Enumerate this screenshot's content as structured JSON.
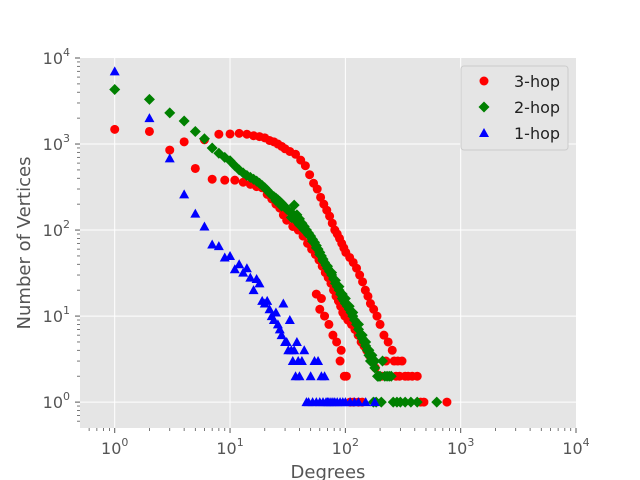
{
  "chart_data": {
    "type": "scatter",
    "title": "",
    "xlabel": "Degrees",
    "ylabel": "Number of Vertices",
    "xscale": "log",
    "yscale": "log",
    "xlim": [
      0.5,
      10000
    ],
    "ylim": [
      0.5,
      10000
    ],
    "x_ticks": [
      {
        "base": "10",
        "exp": "0",
        "value": 1
      },
      {
        "base": "10",
        "exp": "1",
        "value": 10
      },
      {
        "base": "10",
        "exp": "2",
        "value": 100
      },
      {
        "base": "10",
        "exp": "3",
        "value": 1000
      },
      {
        "base": "10",
        "exp": "4",
        "value": 10000
      }
    ],
    "y_ticks": [
      {
        "base": "10",
        "exp": "0",
        "value": 1
      },
      {
        "base": "10",
        "exp": "1",
        "value": 10
      },
      {
        "base": "10",
        "exp": "2",
        "value": 100
      },
      {
        "base": "10",
        "exp": "3",
        "value": 1000
      },
      {
        "base": "10",
        "exp": "4",
        "value": 10000
      }
    ],
    "grid": true,
    "legend_position": "top-right",
    "background_color": "#e5e5e5",
    "series": [
      {
        "name": "3-hop",
        "marker": "circle",
        "color": "#ff0000",
        "points": [
          [
            1,
            1480
          ],
          [
            2,
            1400
          ],
          [
            3,
            850
          ],
          [
            4,
            1060
          ],
          [
            5,
            520
          ],
          [
            6,
            1120
          ],
          [
            7,
            390
          ],
          [
            8,
            1300
          ],
          [
            9,
            380
          ],
          [
            10,
            1310
          ],
          [
            11,
            380
          ],
          [
            12,
            1330
          ],
          [
            13,
            360
          ],
          [
            14,
            1300
          ],
          [
            15,
            340
          ],
          [
            16,
            1250
          ],
          [
            17,
            320
          ],
          [
            18,
            1220
          ],
          [
            19,
            310
          ],
          [
            20,
            1180
          ],
          [
            21,
            260
          ],
          [
            22,
            1100
          ],
          [
            23,
            230
          ],
          [
            24,
            1060
          ],
          [
            25,
            200
          ],
          [
            26,
            1000
          ],
          [
            27,
            180
          ],
          [
            28,
            940
          ],
          [
            29,
            150
          ],
          [
            30,
            880
          ],
          [
            31,
            130
          ],
          [
            33,
            820
          ],
          [
            35,
            110
          ],
          [
            37,
            760
          ],
          [
            39,
            100
          ],
          [
            41,
            650
          ],
          [
            43,
            85
          ],
          [
            45,
            560
          ],
          [
            47,
            70
          ],
          [
            49,
            440
          ],
          [
            51,
            60
          ],
          [
            53,
            350
          ],
          [
            55,
            52
          ],
          [
            57,
            300
          ],
          [
            59,
            45
          ],
          [
            61,
            240
          ],
          [
            63,
            38
          ],
          [
            65,
            200
          ],
          [
            67,
            32
          ],
          [
            69,
            170
          ],
          [
            71,
            28
          ],
          [
            73,
            145
          ],
          [
            75,
            24
          ],
          [
            77,
            120
          ],
          [
            79,
            20
          ],
          [
            81,
            100
          ],
          [
            83,
            17
          ],
          [
            85,
            90
          ],
          [
            87,
            15
          ],
          [
            89,
            80
          ],
          [
            91,
            13
          ],
          [
            93,
            70
          ],
          [
            95,
            11
          ],
          [
            97,
            62
          ],
          [
            99,
            10
          ],
          [
            101,
            55
          ],
          [
            105,
            9
          ],
          [
            109,
            48
          ],
          [
            113,
            8
          ],
          [
            117,
            42
          ],
          [
            121,
            7
          ],
          [
            125,
            36
          ],
          [
            129,
            6
          ],
          [
            133,
            30
          ],
          [
            137,
            5
          ],
          [
            141,
            25
          ],
          [
            145,
            4.5
          ],
          [
            149,
            20
          ],
          [
            153,
            4
          ],
          [
            157,
            17
          ],
          [
            161,
            3.5
          ],
          [
            165,
            14
          ],
          [
            170,
            3
          ],
          [
            176,
            12
          ],
          [
            182,
            2.5
          ],
          [
            188,
            10
          ],
          [
            194,
            2
          ],
          [
            200,
            8
          ],
          [
            208,
            2
          ],
          [
            216,
            6
          ],
          [
            225,
            3
          ],
          [
            235,
            5
          ],
          [
            245,
            2
          ],
          [
            255,
            4
          ],
          [
            265,
            3
          ],
          [
            275,
            2
          ],
          [
            285,
            3
          ],
          [
            295,
            2
          ],
          [
            310,
            3
          ],
          [
            330,
            2
          ],
          [
            350,
            2
          ],
          [
            380,
            2
          ],
          [
            420,
            2
          ],
          [
            450,
            1
          ],
          [
            480,
            1
          ],
          [
            760,
            1
          ],
          [
            56,
            18
          ],
          [
            62,
            16
          ],
          [
            60,
            12
          ],
          [
            66,
            10
          ],
          [
            72,
            8
          ],
          [
            78,
            6
          ],
          [
            84,
            5
          ],
          [
            92,
            4
          ],
          [
            90,
            3
          ],
          [
            98,
            2
          ],
          [
            102,
            2
          ],
          [
            110,
            1
          ],
          [
            118,
            1
          ],
          [
            130,
            1
          ],
          [
            140,
            1
          ]
        ]
      },
      {
        "name": "2-hop",
        "marker": "diamond",
        "color": "#008000",
        "points": [
          [
            1,
            4300
          ],
          [
            2,
            3300
          ],
          [
            3,
            2300
          ],
          [
            4,
            1850
          ],
          [
            5,
            1400
          ],
          [
            6,
            1150
          ],
          [
            7,
            900
          ],
          [
            8,
            780
          ],
          [
            9,
            700
          ],
          [
            10,
            640
          ],
          [
            11,
            560
          ],
          [
            12,
            500
          ],
          [
            13,
            460
          ],
          [
            14,
            430
          ],
          [
            15,
            410
          ],
          [
            16,
            390
          ],
          [
            17,
            370
          ],
          [
            18,
            350
          ],
          [
            19,
            330
          ],
          [
            20,
            310
          ],
          [
            21,
            290
          ],
          [
            22,
            270
          ],
          [
            23,
            255
          ],
          [
            24,
            245
          ],
          [
            25,
            235
          ],
          [
            26,
            225
          ],
          [
            27,
            215
          ],
          [
            28,
            205
          ],
          [
            29,
            195
          ],
          [
            30,
            185
          ],
          [
            32,
            170
          ],
          [
            34,
            160
          ],
          [
            36,
            195
          ],
          [
            38,
            150
          ],
          [
            40,
            135
          ],
          [
            42,
            120
          ],
          [
            44,
            110
          ],
          [
            46,
            100
          ],
          [
            48,
            92
          ],
          [
            50,
            85
          ],
          [
            52,
            78
          ],
          [
            54,
            72
          ],
          [
            56,
            66
          ],
          [
            58,
            60
          ],
          [
            60,
            55
          ],
          [
            62,
            50
          ],
          [
            64,
            46
          ],
          [
            66,
            42
          ],
          [
            68,
            39
          ],
          [
            70,
            36
          ],
          [
            73,
            33
          ],
          [
            76,
            30
          ],
          [
            79,
            27
          ],
          [
            82,
            24
          ],
          [
            85,
            22
          ],
          [
            88,
            20
          ],
          [
            91,
            18
          ],
          [
            94,
            16
          ],
          [
            97,
            15
          ],
          [
            100,
            14
          ],
          [
            104,
            13
          ],
          [
            108,
            12
          ],
          [
            112,
            11
          ],
          [
            116,
            10
          ],
          [
            120,
            9
          ],
          [
            125,
            8
          ],
          [
            130,
            7
          ],
          [
            135,
            6
          ],
          [
            140,
            5.5
          ],
          [
            145,
            5
          ],
          [
            150,
            4.5
          ],
          [
            155,
            4
          ],
          [
            160,
            3.5
          ],
          [
            165,
            3
          ],
          [
            170,
            3
          ],
          [
            180,
            3
          ],
          [
            190,
            2
          ],
          [
            200,
            2
          ],
          [
            210,
            3
          ],
          [
            220,
            2
          ],
          [
            230,
            2
          ],
          [
            240,
            2
          ],
          [
            250,
            2
          ],
          [
            260,
            1
          ],
          [
            280,
            1
          ],
          [
            300,
            1
          ],
          [
            330,
            1
          ],
          [
            370,
            1
          ],
          [
            420,
            1
          ],
          [
            620,
            1
          ],
          [
            25,
            220
          ],
          [
            28,
            190
          ],
          [
            31,
            175
          ],
          [
            34,
            140
          ],
          [
            37,
            130
          ],
          [
            40,
            115
          ],
          [
            44,
            100
          ],
          [
            48,
            88
          ],
          [
            52,
            74
          ],
          [
            56,
            62
          ],
          [
            60,
            52
          ],
          [
            64,
            44
          ],
          [
            70,
            38
          ],
          [
            76,
            32
          ],
          [
            82,
            26
          ],
          [
            88,
            22
          ],
          [
            94,
            18
          ],
          [
            100,
            16
          ],
          [
            108,
            13
          ],
          [
            116,
            11
          ],
          [
            130,
            8
          ],
          [
            140,
            6
          ],
          [
            150,
            5
          ],
          [
            160,
            4
          ],
          [
            170,
            3.5
          ],
          [
            180,
            2.5
          ],
          [
            195,
            2
          ],
          [
            175,
            1
          ],
          [
            185,
            1
          ],
          [
            205,
            1
          ]
        ]
      },
      {
        "name": "1-hop",
        "marker": "triangle",
        "color": "#0000ff",
        "points": [
          [
            1,
            7000
          ],
          [
            2,
            2000
          ],
          [
            3,
            680
          ],
          [
            4,
            260
          ],
          [
            5,
            155
          ],
          [
            6,
            110
          ],
          [
            7,
            68
          ],
          [
            8,
            65
          ],
          [
            9,
            48
          ],
          [
            10,
            50
          ],
          [
            11,
            35
          ],
          [
            12,
            40
          ],
          [
            13,
            32
          ],
          [
            14,
            36
          ],
          [
            15,
            28
          ],
          [
            16,
            20
          ],
          [
            17,
            27
          ],
          [
            18,
            24
          ],
          [
            19,
            15
          ],
          [
            20,
            14
          ],
          [
            21,
            15
          ],
          [
            22,
            12
          ],
          [
            23,
            10
          ],
          [
            24,
            9
          ],
          [
            25,
            11
          ],
          [
            26,
            8
          ],
          [
            27,
            7
          ],
          [
            28,
            6
          ],
          [
            29,
            14
          ],
          [
            30,
            5
          ],
          [
            31,
            5
          ],
          [
            32,
            4
          ],
          [
            33,
            9
          ],
          [
            34,
            4
          ],
          [
            35,
            3
          ],
          [
            36,
            4
          ],
          [
            37,
            2
          ],
          [
            38,
            5
          ],
          [
            39,
            3
          ],
          [
            40,
            2
          ],
          [
            42,
            3
          ],
          [
            44,
            4
          ],
          [
            46,
            1
          ],
          [
            48,
            1
          ],
          [
            50,
            2
          ],
          [
            52,
            1
          ],
          [
            54,
            3
          ],
          [
            56,
            1
          ],
          [
            58,
            3
          ],
          [
            60,
            1
          ],
          [
            62,
            2
          ],
          [
            64,
            1
          ],
          [
            66,
            2
          ],
          [
            68,
            1
          ],
          [
            70,
            1
          ],
          [
            72,
            1
          ],
          [
            75,
            1
          ],
          [
            78,
            1
          ],
          [
            81,
            1
          ],
          [
            85,
            1
          ],
          [
            90,
            1
          ],
          [
            95,
            1
          ],
          [
            100,
            1
          ],
          [
            110,
            1
          ],
          [
            120,
            1
          ],
          [
            130,
            1
          ],
          [
            150,
            1
          ],
          [
            180,
            1
          ]
        ]
      }
    ]
  }
}
